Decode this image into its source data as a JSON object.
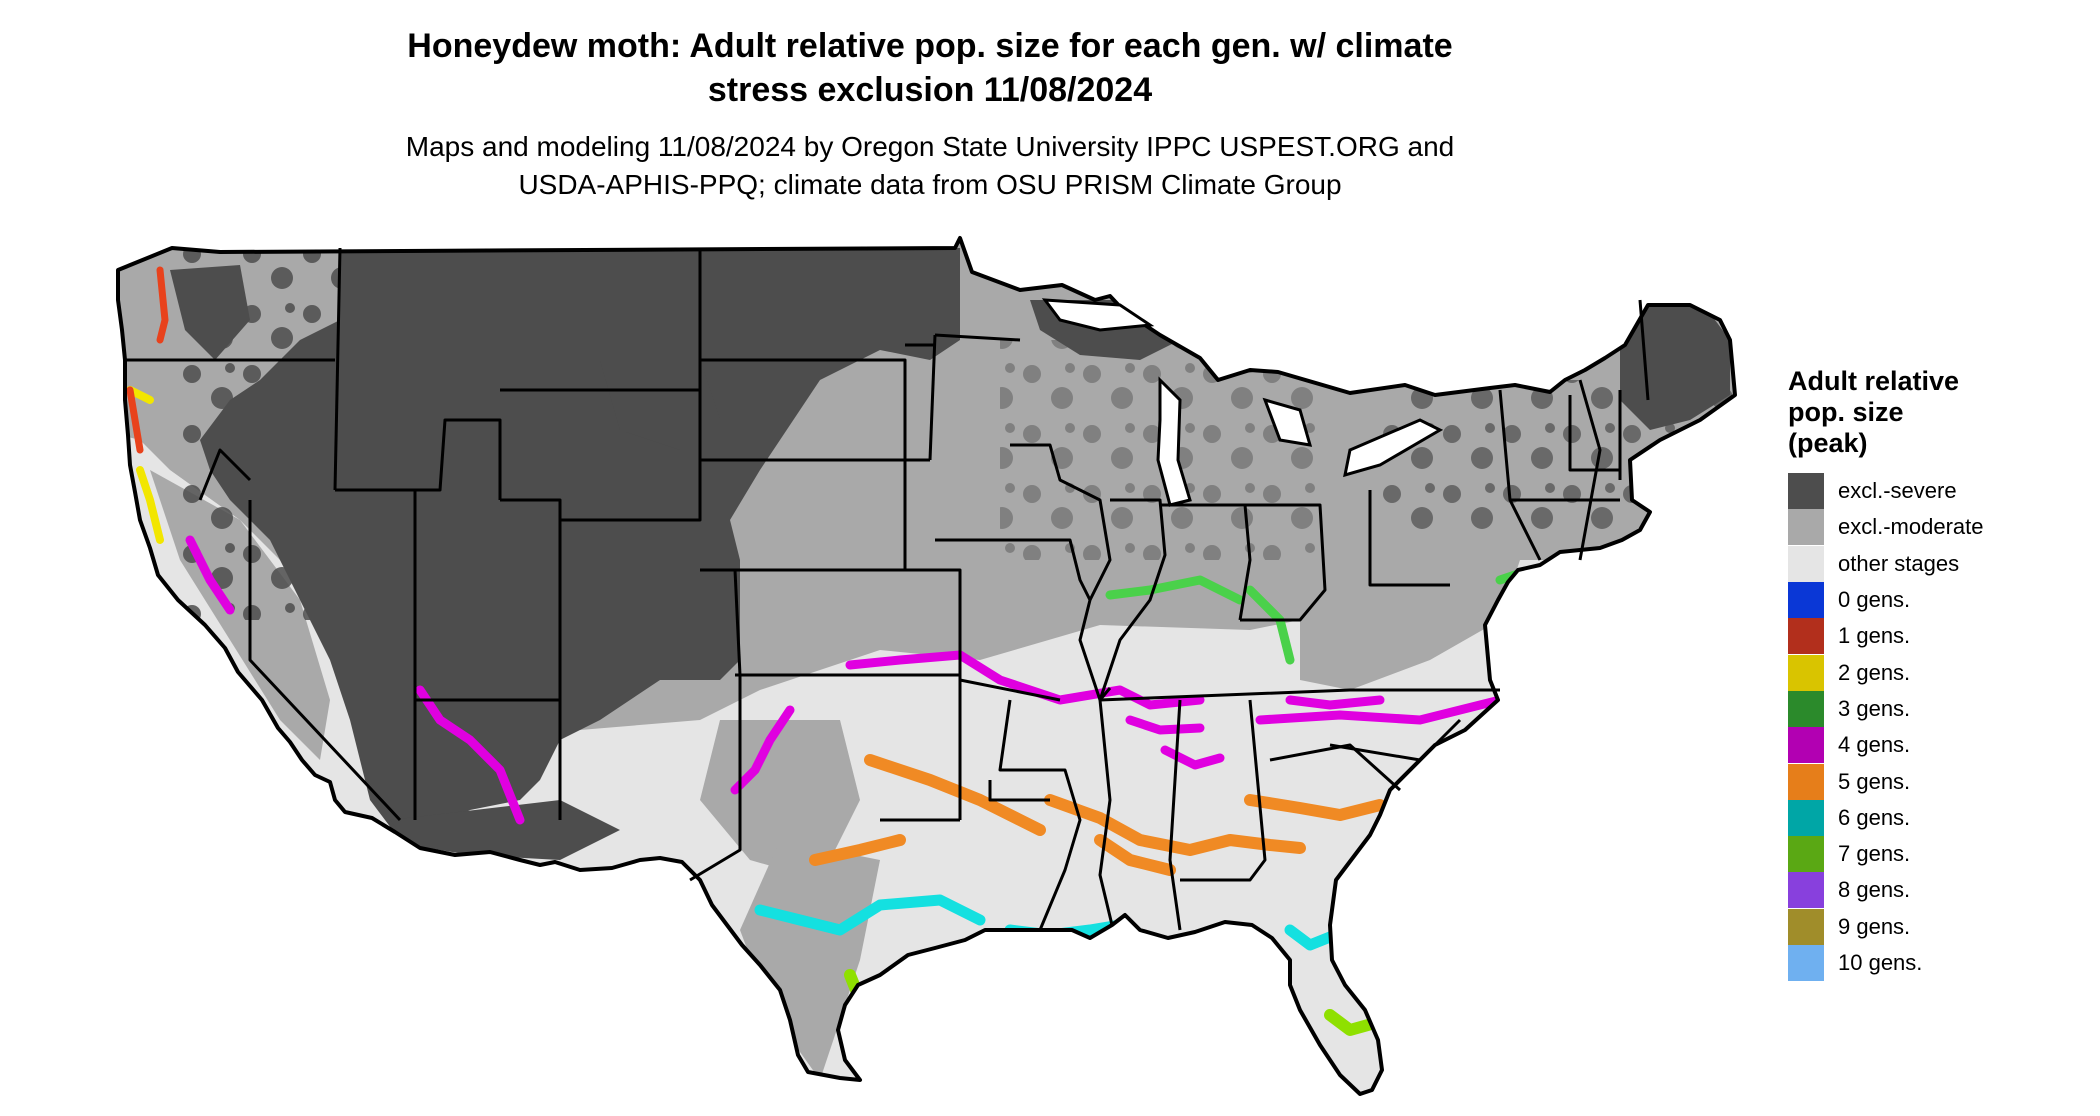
{
  "title": {
    "line1": "Honeydew moth: Adult relative pop. size for each gen. w/ climate",
    "line2": "stress exclusion 11/08/2024"
  },
  "subtitle": {
    "line1": "Maps and modeling 11/08/2024 by Oregon State University IPPC USPEST.ORG and",
    "line2": "USDA-APHIS-PPQ; climate data from OSU PRISM Climate Group"
  },
  "legend": {
    "title_lines": [
      "Adult relative",
      "pop. size",
      "(peak)"
    ],
    "items": [
      {
        "label": "excl.-severe",
        "color": "#4d4d4d"
      },
      {
        "label": "excl.-moderate",
        "color": "#a9a9a9"
      },
      {
        "label": "other stages",
        "color": "#e5e5e5"
      },
      {
        "label": "0 gens.",
        "color": "#0a37d6"
      },
      {
        "label": "1 gens.",
        "color": "#b22f1c"
      },
      {
        "label": "2 gens.",
        "color": "#d9c400"
      },
      {
        "label": "3 gens.",
        "color": "#2b8a2b"
      },
      {
        "label": "4 gens.",
        "color": "#b200b2"
      },
      {
        "label": "5 gens.",
        "color": "#e67e1a"
      },
      {
        "label": "6 gens.",
        "color": "#00a6a6"
      },
      {
        "label": "7 gens.",
        "color": "#5aa814"
      },
      {
        "label": "8 gens.",
        "color": "#8840dd"
      },
      {
        "label": "9 gens.",
        "color": "#a08d2a"
      },
      {
        "label": "10 gens.",
        "color": "#6fb0f0"
      }
    ]
  },
  "map_colors": {
    "border": "#000000",
    "severe": "#4d4d4d",
    "moderate": "#a9a9a9",
    "other": "#e5e5e5",
    "magenta": "#e000e0",
    "orange": "#f08a24",
    "cyan": "#14e0e0",
    "green": "#4ad14a",
    "lime": "#8fe000",
    "yellow": "#f2e600",
    "red": "#e8421c"
  }
}
